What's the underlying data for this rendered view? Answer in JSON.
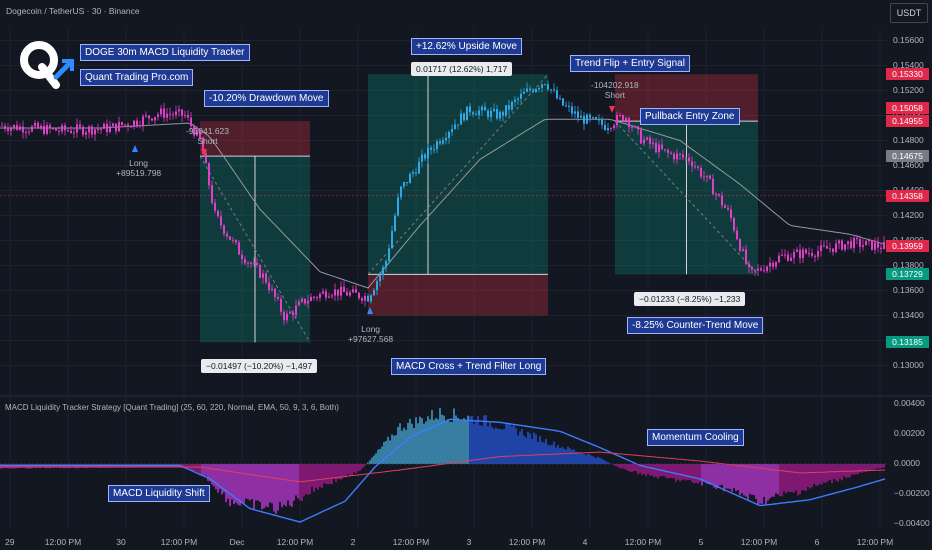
{
  "header": {
    "symbol_line": "Dogecoin / TetherUS · 30 · Binance",
    "currency_button": "USDT"
  },
  "brand": {
    "title": "DOGE 30m MACD Liquidity Tracker",
    "site": "Quant Trading Pro.com"
  },
  "indicator_title": "MACD Liquidity Tracker Strategy [Quant Trading] (25, 60, 220, Normal, EMA, 50, 9, 3, 6, Both)",
  "annotations": {
    "drawdown": "-10.20% Drawdown Move",
    "upside": "+12.62% Upside Move",
    "trend_flip": "Trend Flip + Entry Signal",
    "pullback": "Pullback Entry Zone",
    "macd_cross": "MACD Cross + Trend Filter Long",
    "counter_trend": "-8.25% Counter-Trend Move",
    "momentum": "Momentum Cooling",
    "liquidity_shift": "MACD Liquidity Shift"
  },
  "measurements": {
    "upside": "0.01717 (12.62%) 1,717",
    "drawdown": "−0.01497 (−10.20%) −1,497",
    "counter": "−0.01233 (−8.25%) −1,233"
  },
  "trades": {
    "long1_label": "Long",
    "long1_value": "+89519.798",
    "short1_value": "-91041.623",
    "short1_label": "Short",
    "long2_label": "Long",
    "long2_value": "+97627.568",
    "short2_value": "-104202.918",
    "short2_label": "Short"
  },
  "price_axis": {
    "ticks": [
      "0.15600",
      "0.15400",
      "0.15200",
      "0.15000",
      "0.14800",
      "0.14600",
      "0.14400",
      "0.14200",
      "0.14000",
      "0.13800",
      "0.13600",
      "0.13400",
      "0.13200",
      "0.13000"
    ],
    "tags": [
      {
        "value": "0.15330",
        "color": "#e0294a"
      },
      {
        "value": "0.15058",
        "color": "#e0294a"
      },
      {
        "value": "0.14955",
        "color": "#e0294a"
      },
      {
        "value": "0.14675",
        "color": "#787b86"
      },
      {
        "value": "0.14358",
        "color": "#e0294a"
      },
      {
        "value": "0.13959",
        "color": "#e0294a"
      },
      {
        "value": "0.13729",
        "color": "#089981"
      },
      {
        "value": "0.13185",
        "color": "#089981"
      }
    ]
  },
  "macd_axis": {
    "ticks": [
      "0.00400",
      "0.00200",
      "0.0000",
      "−0.00200",
      "−0.00400"
    ]
  },
  "time_axis": {
    "labels": [
      "29",
      "12:00 PM",
      "30",
      "12:00 PM",
      "Dec",
      "12:00 PM",
      "2",
      "12:00 PM",
      "3",
      "12:00 PM",
      "4",
      "12:00 PM",
      "5",
      "12:00 PM",
      "6",
      "12:00 PM"
    ]
  },
  "chart_data": {
    "type": "candlestick",
    "price_anchors": [
      {
        "t": 0,
        "p": 0.1492
      },
      {
        "t": 60,
        "p": 0.1488
      },
      {
        "t": 110,
        "p": 0.149
      },
      {
        "t": 135,
        "p": 0.1495
      },
      {
        "t": 160,
        "p": 0.1502
      },
      {
        "t": 185,
        "p": 0.15
      },
      {
        "t": 200,
        "p": 0.148
      },
      {
        "t": 205,
        "p": 0.1462
      },
      {
        "t": 215,
        "p": 0.142
      },
      {
        "t": 240,
        "p": 0.139
      },
      {
        "t": 265,
        "p": 0.137
      },
      {
        "t": 285,
        "p": 0.1338
      },
      {
        "t": 305,
        "p": 0.1352
      },
      {
        "t": 330,
        "p": 0.136
      },
      {
        "t": 368,
        "p": 0.1355
      },
      {
        "t": 385,
        "p": 0.138
      },
      {
        "t": 400,
        "p": 0.144
      },
      {
        "t": 425,
        "p": 0.1468
      },
      {
        "t": 450,
        "p": 0.149
      },
      {
        "t": 470,
        "p": 0.1505
      },
      {
        "t": 500,
        "p": 0.15
      },
      {
        "t": 525,
        "p": 0.1518
      },
      {
        "t": 545,
        "p": 0.1528
      },
      {
        "t": 560,
        "p": 0.151
      },
      {
        "t": 580,
        "p": 0.1498
      },
      {
        "t": 605,
        "p": 0.1492
      },
      {
        "t": 625,
        "p": 0.15
      },
      {
        "t": 640,
        "p": 0.1482
      },
      {
        "t": 665,
        "p": 0.147
      },
      {
        "t": 690,
        "p": 0.1465
      },
      {
        "t": 710,
        "p": 0.1445
      },
      {
        "t": 730,
        "p": 0.142
      },
      {
        "t": 750,
        "p": 0.1372
      },
      {
        "t": 780,
        "p": 0.1387
      },
      {
        "t": 820,
        "p": 0.1392
      },
      {
        "t": 850,
        "p": 0.1398
      },
      {
        "t": 885,
        "p": 0.1395
      }
    ],
    "ma_anchors": [
      {
        "t": 0,
        "p": 0.149
      },
      {
        "t": 100,
        "p": 0.149
      },
      {
        "t": 190,
        "p": 0.1494
      },
      {
        "t": 210,
        "p": 0.1483
      },
      {
        "t": 260,
        "p": 0.1425
      },
      {
        "t": 320,
        "p": 0.1375
      },
      {
        "t": 368,
        "p": 0.1362
      },
      {
        "t": 420,
        "p": 0.1412
      },
      {
        "t": 480,
        "p": 0.1465
      },
      {
        "t": 545,
        "p": 0.1497
      },
      {
        "t": 610,
        "p": 0.1497
      },
      {
        "t": 680,
        "p": 0.148
      },
      {
        "t": 740,
        "p": 0.1445
      },
      {
        "t": 790,
        "p": 0.1412
      },
      {
        "t": 850,
        "p": 0.1405
      },
      {
        "t": 885,
        "p": 0.1397
      }
    ],
    "y_range": [
      0.129,
      0.157
    ],
    "boxes": [
      {
        "x0": 200,
        "x1": 310,
        "entry": 0.14675,
        "stop": 0.14955,
        "target": 0.13185
      },
      {
        "x0": 368,
        "x1": 548,
        "entry": 0.13729,
        "stop": 0.134,
        "target": 0.1533
      },
      {
        "x0": 615,
        "x1": 758,
        "entry": 0.14955,
        "stop": 0.1533,
        "target": 0.13729
      }
    ],
    "macd_range": [
      -0.0043,
      0.0043
    ],
    "macd_hist_anchors": [
      {
        "t": 0,
        "v": -0.0003
      },
      {
        "t": 180,
        "v": -0.0002
      },
      {
        "t": 205,
        "v": -0.0008
      },
      {
        "t": 230,
        "v": -0.0025
      },
      {
        "t": 280,
        "v": -0.003
      },
      {
        "t": 320,
        "v": -0.0015
      },
      {
        "t": 360,
        "v": -0.0005
      },
      {
        "t": 380,
        "v": 0.001
      },
      {
        "t": 400,
        "v": 0.0025
      },
      {
        "t": 440,
        "v": 0.0034
      },
      {
        "t": 480,
        "v": 0.003
      },
      {
        "t": 520,
        "v": 0.0022
      },
      {
        "t": 560,
        "v": 0.0012
      },
      {
        "t": 600,
        "v": 0.0004
      },
      {
        "t": 620,
        "v": -0.0003
      },
      {
        "t": 650,
        "v": -0.0008
      },
      {
        "t": 720,
        "v": -0.0015
      },
      {
        "t": 760,
        "v": -0.0025
      },
      {
        "t": 800,
        "v": -0.0018
      },
      {
        "t": 850,
        "v": -0.0008
      },
      {
        "t": 885,
        "v": -0.0002
      }
    ],
    "macd_line_anchors": [
      {
        "t": 0,
        "v": -0.0001
      },
      {
        "t": 180,
        "v": -0.0001
      },
      {
        "t": 210,
        "v": -0.001
      },
      {
        "t": 250,
        "v": -0.003
      },
      {
        "t": 300,
        "v": -0.0039
      },
      {
        "t": 345,
        "v": -0.0025
      },
      {
        "t": 375,
        "v": -0.0002
      },
      {
        "t": 410,
        "v": 0.0018
      },
      {
        "t": 450,
        "v": 0.003
      },
      {
        "t": 500,
        "v": 0.0028
      },
      {
        "t": 560,
        "v": 0.0022
      },
      {
        "t": 600,
        "v": 0.0011
      },
      {
        "t": 640,
        "v": -0.0001
      },
      {
        "t": 700,
        "v": -0.001
      },
      {
        "t": 760,
        "v": -0.0028
      },
      {
        "t": 810,
        "v": -0.0024
      },
      {
        "t": 860,
        "v": -0.0015
      },
      {
        "t": 885,
        "v": -0.001
      }
    ],
    "signal_anchors": [
      {
        "t": 0,
        "v": -0.0002
      },
      {
        "t": 200,
        "v": -0.0002
      },
      {
        "t": 300,
        "v": -0.0012
      },
      {
        "t": 400,
        "v": -0.0004
      },
      {
        "t": 500,
        "v": 0.0005
      },
      {
        "t": 600,
        "v": 0.0008
      },
      {
        "t": 700,
        "v": 0.0002
      },
      {
        "t": 800,
        "v": -0.0006
      },
      {
        "t": 885,
        "v": -0.0004
      }
    ]
  }
}
